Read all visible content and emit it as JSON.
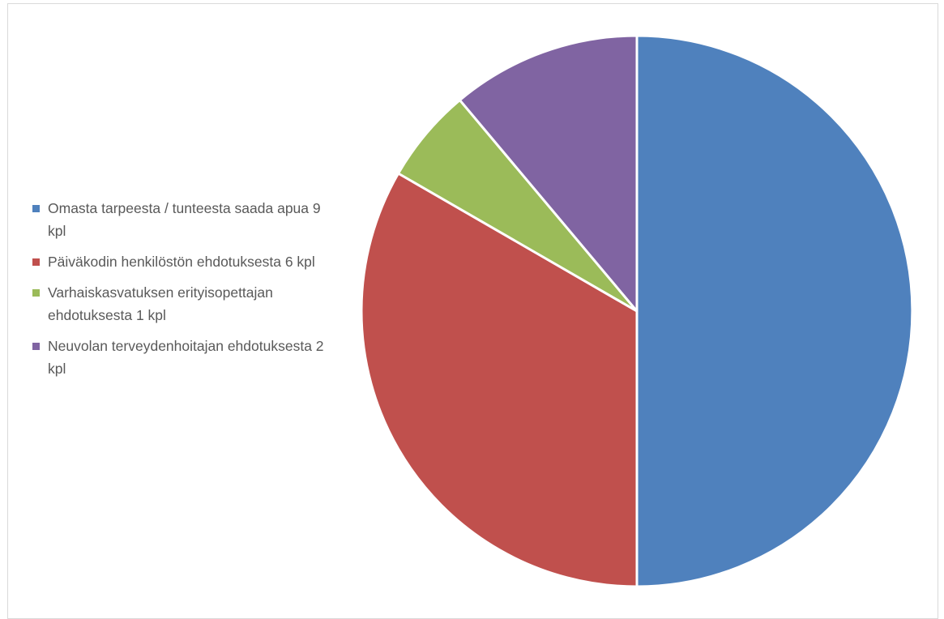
{
  "chart_data": {
    "type": "pie",
    "categories": [
      "Omasta tarpeesta / tunteesta saada apua 9 kpl",
      "Päiväkodin henkilöstön ehdotuksesta 6 kpl",
      "Varhaiskasvatuksen erityisopettajan ehdotuksesta 1 kpl",
      "Neuvolan terveydenhoitajan ehdotuksesta 2 kpl"
    ],
    "values": [
      9,
      6,
      1,
      2
    ],
    "colors": [
      "#4f81bd",
      "#c0504d",
      "#9bbb59",
      "#8064a2"
    ],
    "title": "",
    "legend_position": "left"
  }
}
